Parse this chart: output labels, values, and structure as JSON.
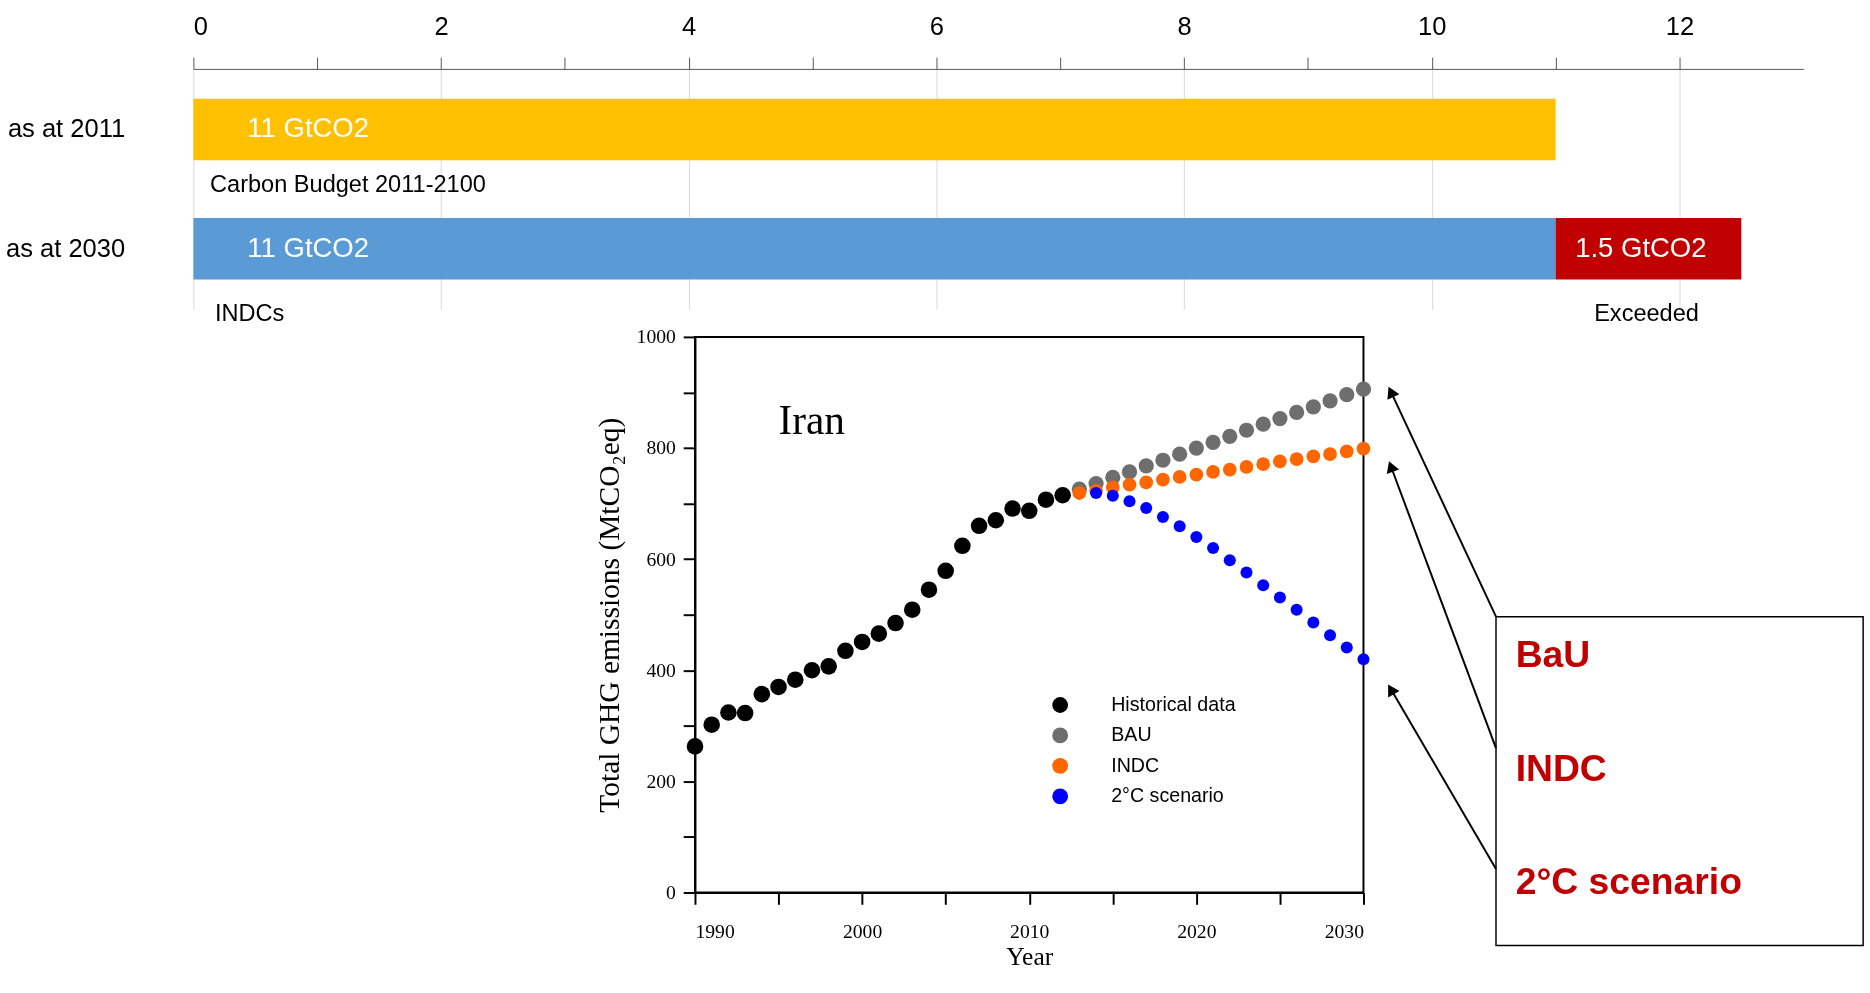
{
  "chart_data": [
    {
      "type": "bar",
      "orientation": "horizontal",
      "stacked": true,
      "categories": [
        "as at 2011",
        "as at 2030"
      ],
      "series": [
        {
          "colors": [
            "#ffc000",
            "#5b9bd5"
          ],
          "values": [
            11,
            11
          ],
          "value_labels": [
            "11 GtCO2",
            "11 GtCO2"
          ]
        },
        {
          "color": "#c00000",
          "values": [
            null,
            1.5
          ],
          "value_labels": [
            null,
            "1.5 GtCO2"
          ]
        }
      ],
      "xlim": [
        0,
        13
      ],
      "xticks": [
        0,
        {
          "value": 1,
          "label": null
        },
        2,
        {
          "value": 3,
          "label": null
        },
        4,
        {
          "value": 5,
          "label": null
        },
        6,
        {
          "value": 7,
          "label": null
        },
        8,
        {
          "value": 9,
          "label": null
        },
        10,
        {
          "value": 11,
          "label": null
        },
        12
      ],
      "grid": "x",
      "annotations": [
        "Carbon Budget 2011-2100",
        "INDCs",
        "Exceeded"
      ]
    },
    {
      "type": "scatter",
      "title": "Iran",
      "xlabel": "Year",
      "ylabel": "Total GHG emissions (MtCO₂eq)",
      "series": [
        {
          "name": "Historical data",
          "color": "#000000",
          "x": [
            1990,
            1991,
            1992,
            1993,
            1994,
            1995,
            1996,
            1997,
            1998,
            1999,
            2000,
            2001,
            2002,
            2003,
            2004,
            2005,
            2006,
            2007,
            2008,
            2009,
            2010,
            2011,
            2012
          ],
          "values": [
            263,
            302,
            324,
            323,
            357,
            370,
            383,
            400,
            407,
            435,
            451,
            466,
            485,
            509,
            545,
            579,
            624,
            660,
            670,
            691,
            687,
            707,
            715
          ]
        },
        {
          "name": "BAU",
          "color": "#6e6e6e",
          "x": [
            2013,
            2014,
            2015,
            2016,
            2017,
            2018,
            2019,
            2020,
            2021,
            2022,
            2023,
            2024,
            2025,
            2026,
            2027,
            2028,
            2029,
            2030
          ],
          "values": [
            726,
            736,
            747,
            757,
            768,
            778,
            789,
            800,
            810,
            821,
            832,
            843,
            853,
            864,
            874,
            885,
            896,
            906
          ]
        },
        {
          "name": "INDC",
          "color": "#ff6600",
          "x": [
            2013,
            2014,
            2015,
            2016,
            2017,
            2018,
            2019,
            2020,
            2021,
            2022,
            2023,
            2024,
            2025,
            2026,
            2027,
            2028,
            2029,
            2030
          ],
          "values": [
            719,
            723,
            729,
            734,
            738,
            743,
            748,
            752,
            757,
            761,
            766,
            771,
            776,
            780,
            785,
            789,
            794,
            799
          ]
        },
        {
          "name": "2°C scenario",
          "color": "#0000ff",
          "x": [
            2014,
            2015,
            2016,
            2017,
            2018,
            2019,
            2020,
            2021,
            2022,
            2023,
            2024,
            2025,
            2026,
            2027,
            2028,
            2029,
            2030
          ],
          "values": [
            719,
            714,
            704,
            692,
            676,
            659,
            640,
            620,
            598,
            576,
            553,
            531,
            509,
            486,
            463,
            441,
            420
          ]
        }
      ],
      "xlim": [
        1990,
        2030
      ],
      "xticks": [
        1990,
        {
          "value": 1995,
          "label": null
        },
        2000,
        {
          "value": 2005,
          "label": null
        },
        2010,
        {
          "value": 2015,
          "label": null
        },
        2020,
        {
          "value": 2025,
          "label": null
        },
        2030
      ],
      "ylim": [
        0,
        1000
      ],
      "yticks": [
        0,
        {
          "value": 100,
          "label": null
        },
        200,
        {
          "value": 300,
          "label": null
        },
        400,
        {
          "value": 500,
          "label": null
        },
        600,
        {
          "value": 700,
          "label": null
        },
        800,
        {
          "value": 900,
          "label": null
        },
        1000
      ],
      "legend": "bottom",
      "marker": "circle",
      "annotations": [
        "BaU",
        "INDC",
        "2°C scenario"
      ]
    }
  ]
}
